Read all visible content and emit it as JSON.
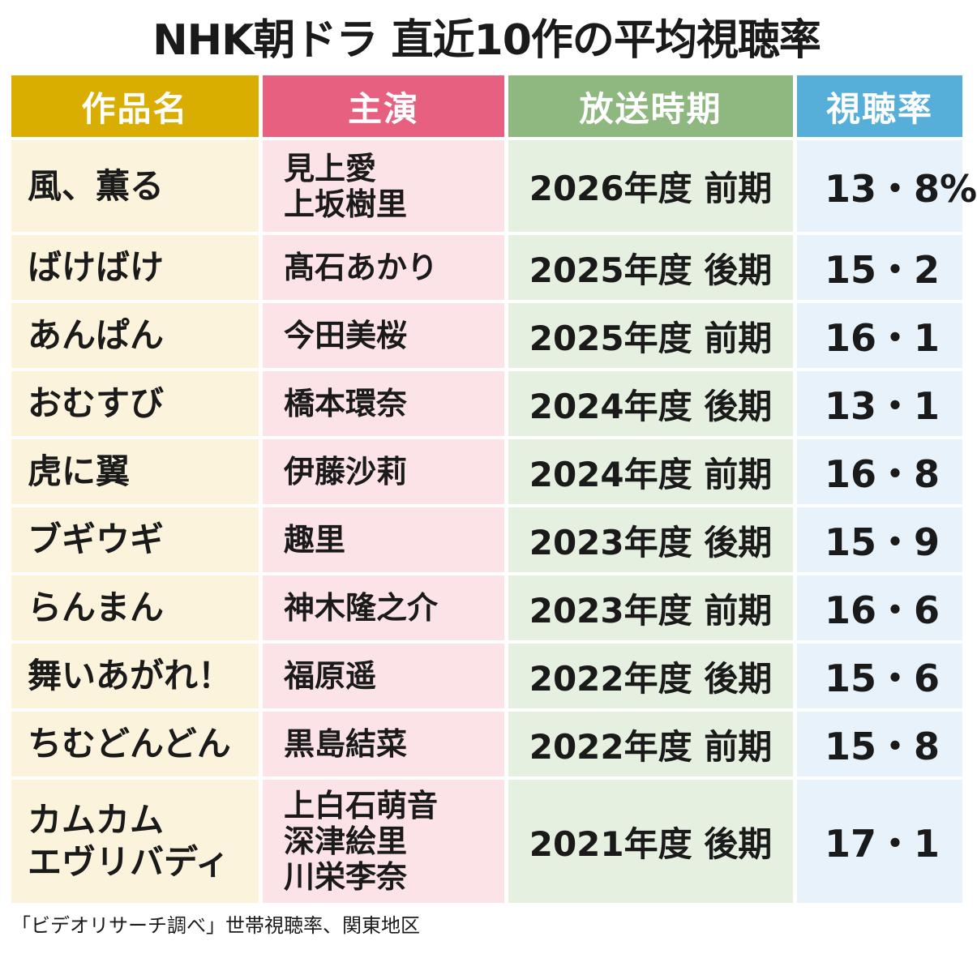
{
  "title": "NHK朝ドラ 直近10作の平均視聴率",
  "headers": {
    "work": "作品名",
    "lead": "主演",
    "period": "放送時期",
    "rating": "視聴率"
  },
  "rows": [
    {
      "work": [
        "風、薫る"
      ],
      "lead": [
        "見上愛",
        "上坂樹里"
      ],
      "period": "2026年度 前期",
      "rating": "13・8%"
    },
    {
      "work": [
        "ばけばけ"
      ],
      "lead": [
        "髙石あかり"
      ],
      "period": "2025年度 後期",
      "rating": "15・2"
    },
    {
      "work": [
        "あんぱん"
      ],
      "lead": [
        "今田美桜"
      ],
      "period": "2025年度 前期",
      "rating": "16・1"
    },
    {
      "work": [
        "おむすび"
      ],
      "lead": [
        "橋本環奈"
      ],
      "period": "2024年度 後期",
      "rating": "13・1"
    },
    {
      "work": [
        "虎に翼"
      ],
      "lead": [
        "伊藤沙莉"
      ],
      "period": "2024年度 前期",
      "rating": "16・8"
    },
    {
      "work": [
        "ブギウギ"
      ],
      "lead": [
        "趣里"
      ],
      "period": "2023年度 後期",
      "rating": "15・9"
    },
    {
      "work": [
        "らんまん"
      ],
      "lead": [
        "神木隆之介"
      ],
      "period": "2023年度 前期",
      "rating": "16・6"
    },
    {
      "work": [
        "舞いあがれ！"
      ],
      "lead": [
        "福原遥"
      ],
      "period": "2022年度 後期",
      "rating": "15・6"
    },
    {
      "work": [
        "ちむどんどん"
      ],
      "lead": [
        "黒島結菜"
      ],
      "period": "2022年度 前期",
      "rating": "15・8"
    },
    {
      "work": [
        "カムカム",
        "エヴリバディ"
      ],
      "lead": [
        "上白石萌音",
        "深津絵里",
        "川栄李奈"
      ],
      "period": "2021年度 後期",
      "rating": "17・1"
    }
  ],
  "note": "「ビデオリサーチ調べ」世帯視聴率、関東地区",
  "colors": {
    "header_work": "#d9ae00",
    "header_lead": "#e8607f",
    "header_period": "#8fb780",
    "header_rating": "#55afd8"
  }
}
